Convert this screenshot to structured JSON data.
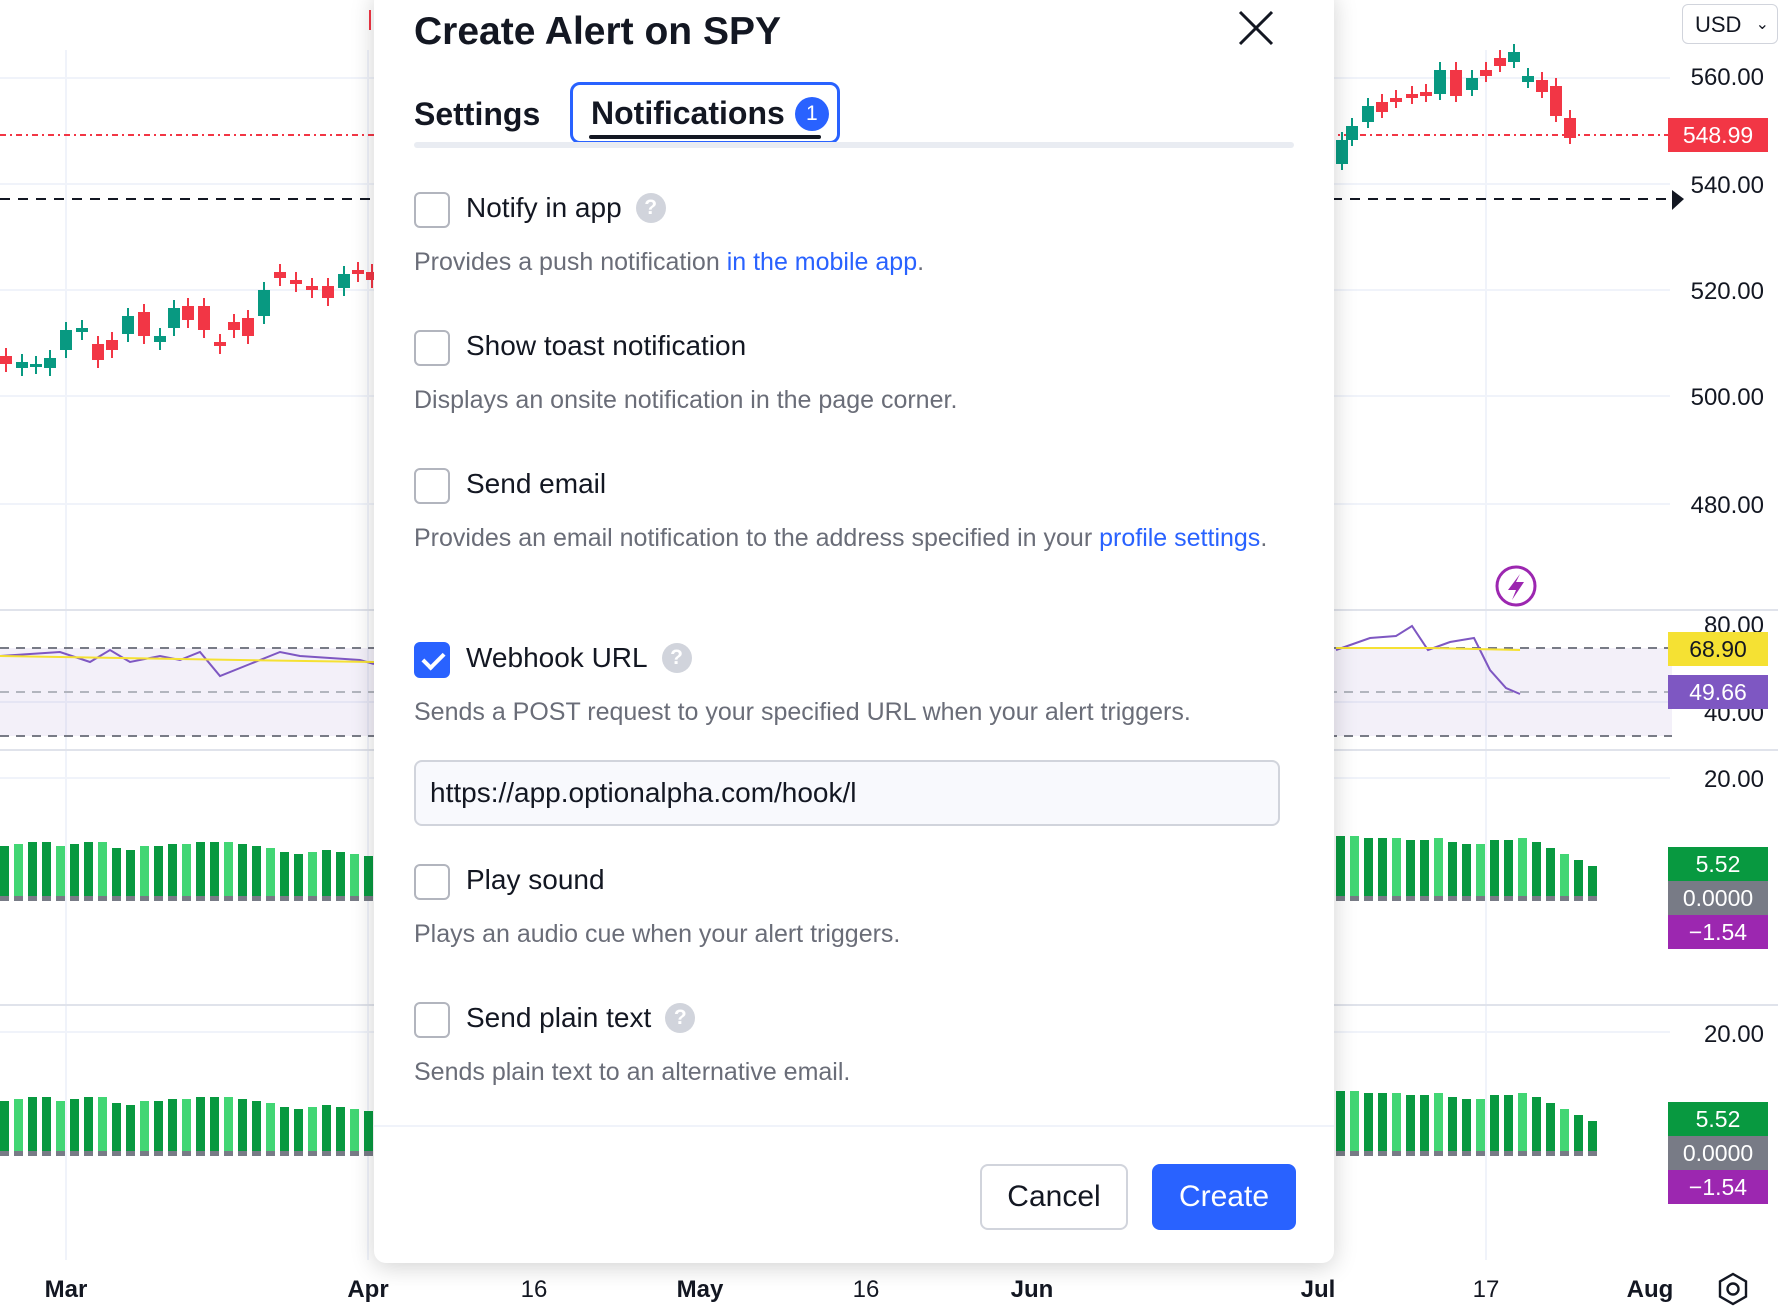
{
  "chart": {
    "currency": "USD",
    "price_axis_labels": [
      "560.00",
      "540.00",
      "520.00",
      "500.00",
      "480.00"
    ],
    "last_price": "548.99",
    "rsi_axis_labels": [
      "80.00",
      "40.00"
    ],
    "rsi_value": "68.90",
    "rsi_ma_value": "49.66",
    "osc1_axis_label": "20.00",
    "osc1_values": [
      "5.52",
      "0.0000",
      "−1.54"
    ],
    "osc2_axis_label": "20.00",
    "osc2_values": [
      "5.52",
      "0.0000",
      "−1.54"
    ],
    "time_labels": [
      {
        "text": "Mar",
        "bold": true
      },
      {
        "text": "Apr",
        "bold": true
      },
      {
        "text": "16",
        "bold": false
      },
      {
        "text": "May",
        "bold": true
      },
      {
        "text": "16",
        "bold": false
      },
      {
        "text": "Jun",
        "bold": true
      },
      {
        "text": "Jul",
        "bold": true
      },
      {
        "text": "17",
        "bold": false
      },
      {
        "text": "Aug",
        "bold": true
      }
    ],
    "colors": {
      "up": "#089981",
      "down": "#f23645",
      "rsi": "#7e57c2",
      "rsi_ma": "#f5e133",
      "bar_dark": "#089940",
      "bar_light": "#42d674",
      "osc_zero": "#787b86",
      "osc_neg": "#9c27b0"
    }
  },
  "dialog": {
    "title": "Create Alert on SPY",
    "tabs": [
      {
        "label": "Settings"
      },
      {
        "label": "Notifications",
        "count": "1"
      }
    ],
    "options": [
      {
        "label": "Notify in app",
        "checked": false,
        "help": true,
        "desc_before": "Provides a push notification ",
        "desc_link": "in the mobile app",
        "desc_after": "."
      },
      {
        "label": "Show toast notification",
        "checked": false,
        "help": false,
        "desc_before": "Displays an onsite notification in the page corner.",
        "desc_link": "",
        "desc_after": ""
      },
      {
        "label": "Send email",
        "checked": false,
        "help": false,
        "desc_before": "Provides an email notification to the address specified in your ",
        "desc_link": "profile settings",
        "desc_after": "."
      },
      {
        "label": "Webhook URL",
        "checked": true,
        "help": true,
        "desc_before": "Sends a POST request to your specified URL when your alert triggers.",
        "desc_link": "",
        "desc_after": ""
      },
      {
        "label": "Play sound",
        "checked": false,
        "help": false,
        "desc_before": "Plays an audio cue when your alert triggers.",
        "desc_link": "",
        "desc_after": ""
      },
      {
        "label": "Send plain text",
        "checked": false,
        "help": true,
        "desc_before": "Sends plain text to an alternative email.",
        "desc_link": "",
        "desc_after": ""
      }
    ],
    "webhook_url": "https://app.optionalpha.com/hook/l",
    "cancel_label": "Cancel",
    "create_label": "Create"
  }
}
